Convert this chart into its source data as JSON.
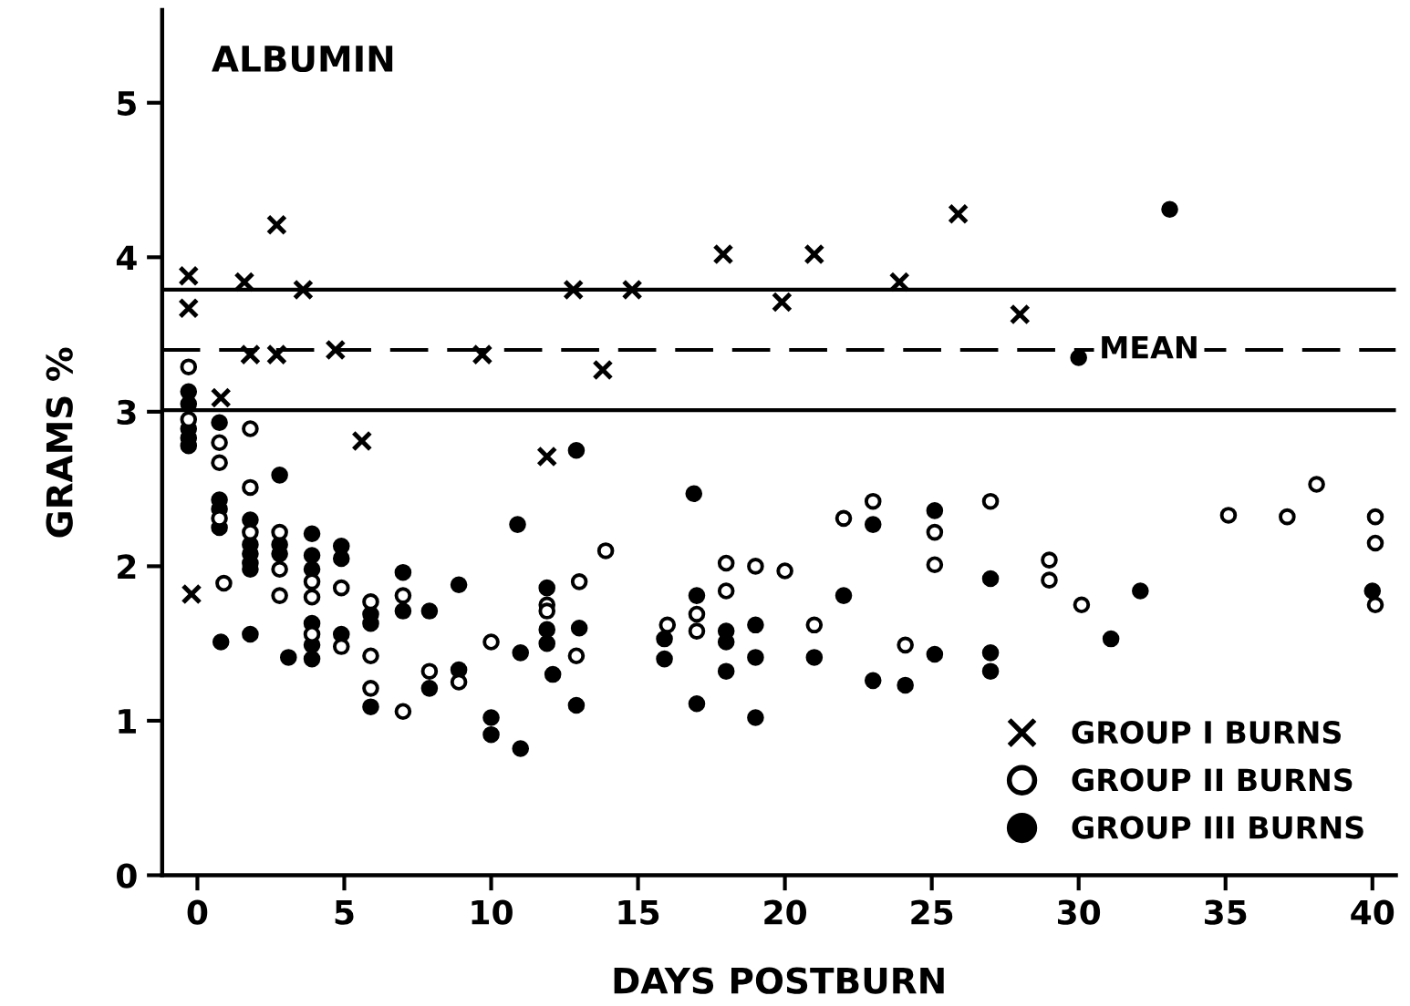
{
  "chart_data": {
    "type": "scatter",
    "title": "ALBUMIN",
    "xlabel": "DAYS POSTBURN",
    "ylabel": "GRAMS %",
    "xlim": [
      -1.2,
      40.8
    ],
    "ylim": [
      0,
      5.6
    ],
    "xticks": [
      0,
      5,
      10,
      15,
      20,
      25,
      30,
      35,
      40
    ],
    "yticks": [
      0,
      1,
      2,
      3,
      4,
      5
    ],
    "grid": false,
    "legend": "bottom right",
    "ref_lines": [
      {
        "axis": "y",
        "value": 3.79,
        "label": null,
        "line_style": "solid",
        "color": "#000000"
      },
      {
        "axis": "y",
        "value": 3.4,
        "label": "MEAN",
        "line_style": "dashed",
        "color": "#000000"
      },
      {
        "axis": "y",
        "value": 3.01,
        "label": null,
        "line_style": "solid",
        "color": "#000000"
      }
    ],
    "series": [
      {
        "name": "GROUP I BURNS",
        "color": "#000000",
        "marker": "cross",
        "x": [
          -0.3,
          -0.3,
          -0.2,
          0.8,
          1.6,
          1.8,
          2.7,
          2.7,
          3.6,
          4.7,
          5.6,
          9.7,
          11.9,
          12.8,
          14.8,
          13.8,
          17.9,
          19.9,
          21.0,
          23.9,
          25.9,
          28.0
        ],
        "values": [
          3.88,
          3.67,
          1.82,
          3.09,
          3.84,
          3.37,
          4.21,
          3.37,
          3.79,
          3.4,
          2.81,
          3.37,
          2.71,
          3.79,
          3.79,
          3.27,
          4.02,
          3.71,
          4.02,
          3.84,
          4.28,
          3.63
        ]
      },
      {
        "name": "GROUP II BURNS",
        "color": "#ffffff",
        "marker": "circle",
        "x": [
          -0.3,
          -0.3,
          0.75,
          0.75,
          0.75,
          0.9,
          1.8,
          1.8,
          1.8,
          2.8,
          2.8,
          2.8,
          3.9,
          3.9,
          3.9,
          4.9,
          4.9,
          5.9,
          5.9,
          5.9,
          7.0,
          7.0,
          7.9,
          8.9,
          10.0,
          11.9,
          11.9,
          13.0,
          12.9,
          13.9,
          16.0,
          17.0,
          17.0,
          18.0,
          18.0,
          19.0,
          20.0,
          22.0,
          23.0,
          21.0,
          24.1,
          25.1,
          25.1,
          27.0,
          29.0,
          29.0,
          30.1,
          35.1,
          37.1,
          38.1,
          40.1,
          40.1,
          40.1
        ],
        "values": [
          3.29,
          2.95,
          2.8,
          2.67,
          2.31,
          1.89,
          2.89,
          2.51,
          2.22,
          2.22,
          1.98,
          1.81,
          1.9,
          1.8,
          1.56,
          1.86,
          1.48,
          1.77,
          1.42,
          1.21,
          1.81,
          1.06,
          1.32,
          1.25,
          1.51,
          1.75,
          1.71,
          1.9,
          1.42,
          2.1,
          1.62,
          1.69,
          1.58,
          2.02,
          1.84,
          2.0,
          1.97,
          2.31,
          2.42,
          1.62,
          1.49,
          2.22,
          2.01,
          2.42,
          2.04,
          1.91,
          1.75,
          2.33,
          2.32,
          2.53,
          2.32,
          2.15,
          1.75
        ]
      },
      {
        "name": "GROUP III BURNS",
        "color": "#000000",
        "marker": "circle",
        "x": [
          -0.3,
          -0.3,
          -0.3,
          -0.3,
          -0.3,
          0.75,
          0.75,
          0.75,
          0.75,
          0.8,
          1.8,
          1.8,
          1.8,
          1.8,
          1.8,
          1.8,
          2.8,
          2.8,
          2.8,
          3.1,
          3.9,
          3.9,
          3.9,
          3.9,
          3.9,
          3.9,
          4.9,
          4.9,
          4.9,
          5.9,
          5.9,
          5.9,
          7.0,
          7.0,
          7.9,
          7.9,
          8.9,
          8.9,
          10.0,
          10.0,
          10.9,
          11.0,
          11.0,
          11.9,
          11.9,
          11.9,
          12.1,
          12.9,
          13.0,
          12.9,
          15.9,
          15.9,
          16.9,
          17.0,
          17.0,
          18.0,
          18.0,
          18.0,
          19.0,
          19.0,
          19.0,
          22.0,
          23.0,
          21.0,
          23.0,
          24.1,
          25.1,
          25.1,
          27.0,
          27.0,
          27.0,
          30.0,
          31.1,
          33.1,
          32.1,
          40.0
        ],
        "values": [
          3.13,
          3.05,
          2.89,
          2.83,
          2.78,
          2.93,
          2.43,
          2.37,
          2.25,
          1.51,
          2.3,
          2.14,
          2.08,
          2.02,
          1.98,
          1.56,
          2.59,
          2.14,
          2.08,
          1.41,
          2.21,
          2.07,
          1.98,
          1.63,
          1.49,
          1.4,
          2.13,
          2.05,
          1.56,
          1.69,
          1.63,
          1.09,
          1.96,
          1.71,
          1.71,
          1.21,
          1.88,
          1.33,
          1.02,
          0.91,
          2.27,
          1.44,
          0.82,
          1.86,
          1.59,
          1.5,
          1.3,
          2.75,
          1.6,
          1.1,
          1.53,
          1.4,
          2.47,
          1.81,
          1.11,
          1.58,
          1.51,
          1.32,
          1.02,
          1.62,
          1.41,
          1.81,
          2.27,
          1.41,
          1.26,
          1.23,
          2.36,
          1.43,
          1.92,
          1.44,
          1.32,
          3.35,
          1.53,
          4.31,
          1.84,
          1.84
        ]
      }
    ]
  }
}
